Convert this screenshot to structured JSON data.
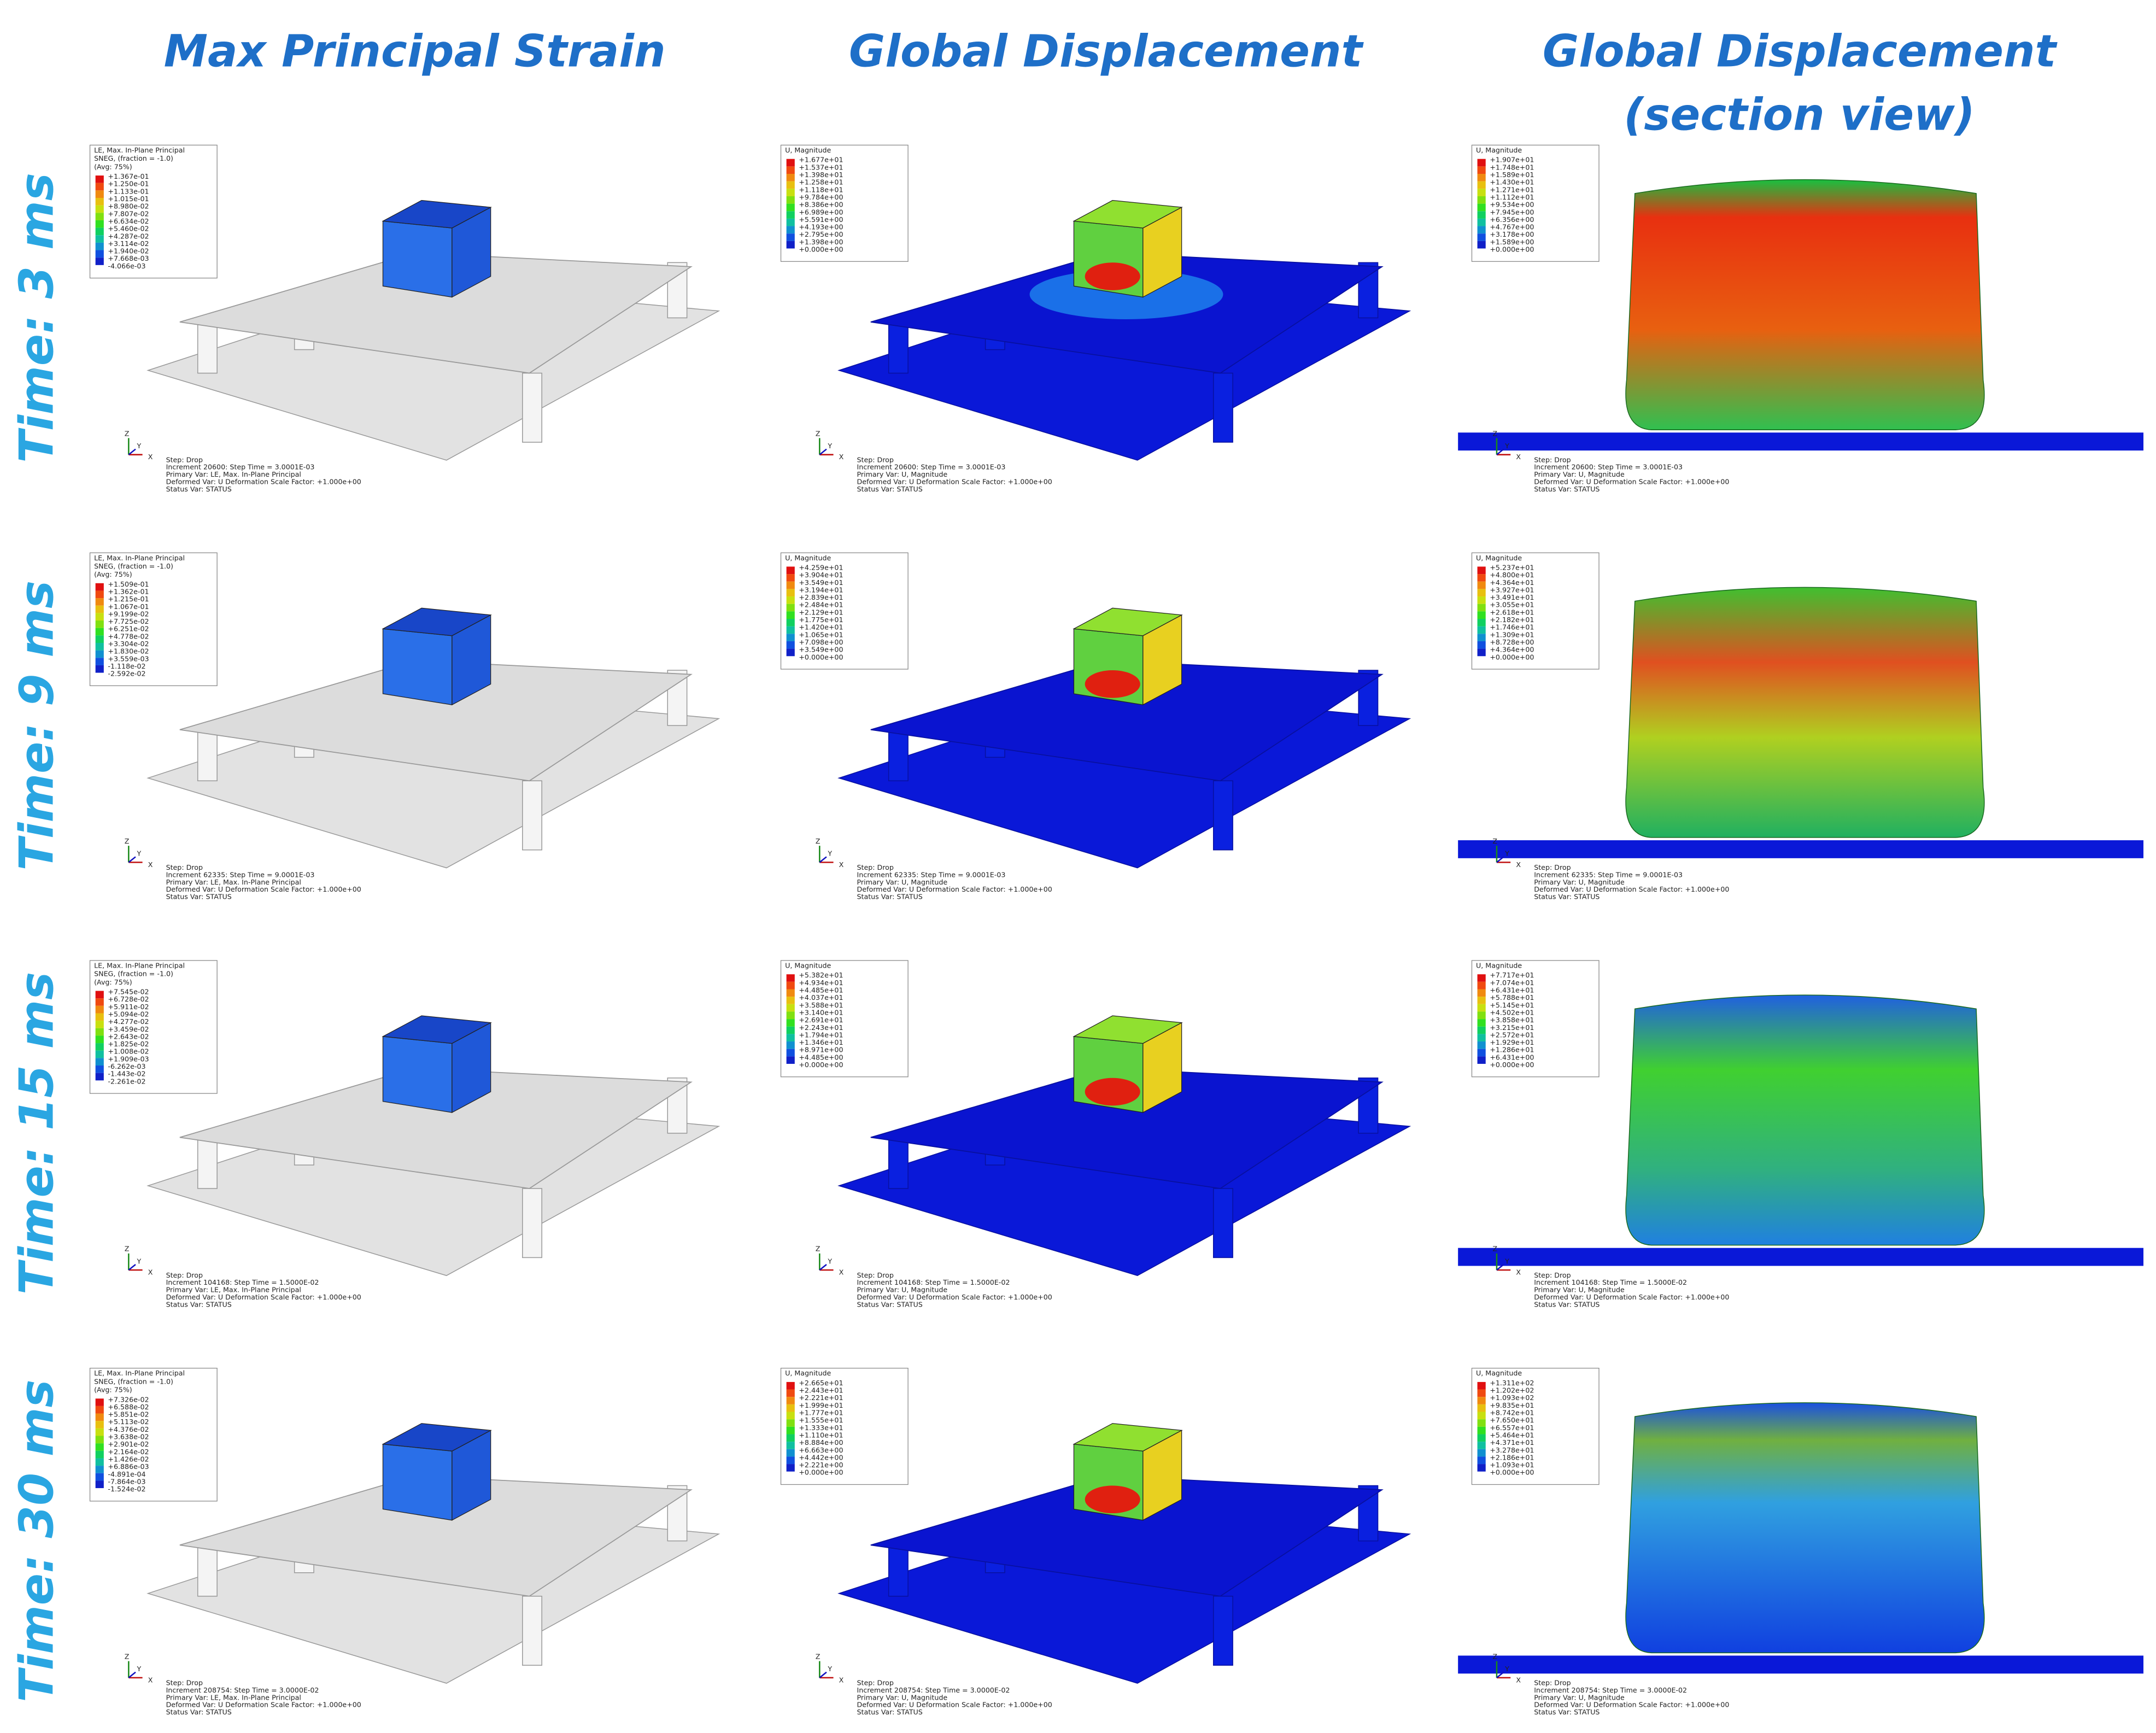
{
  "headers": [
    [
      "Max Principal Strain"
    ],
    [
      "Global Displacement"
    ],
    [
      "Global Displacement",
      "(section view)"
    ]
  ],
  "axis_labels": [
    "Z",
    "Y",
    "X"
  ],
  "rows": [
    {
      "label": "Time: 3 ms",
      "panels": [
        {
          "legend": {
            "title": [
              "LE, Max. In-Plane Principal",
              "SNEG, (fraction = -1.0)",
              "(Avg: 75%)"
            ],
            "values": [
              "+1.367e-01",
              "+1.250e-01",
              "+1.133e-01",
              "+1.015e-01",
              "+8.980e-02",
              "+7.807e-02",
              "+6.634e-02",
              "+5.460e-02",
              "+4.287e-02",
              "+3.114e-02",
              "+1.940e-02",
              "+7.668e-03",
              "-4.066e-03"
            ]
          },
          "footer": [
            "Step: Drop",
            "Increment     20600: Step Time =    3.0001E-03",
            "Primary Var: LE, Max. In-Plane Principal",
            "Deformed Var: U   Deformation Scale Factor: +1.000e+00",
            "Status Var: STATUS"
          ]
        },
        {
          "legend": {
            "title": [
              "U, Magnitude"
            ],
            "values": [
              "+1.677e+01",
              "+1.537e+01",
              "+1.398e+01",
              "+1.258e+01",
              "+1.118e+01",
              "+9.784e+00",
              "+8.386e+00",
              "+6.989e+00",
              "+5.591e+00",
              "+4.193e+00",
              "+2.795e+00",
              "+1.398e+00",
              "+0.000e+00"
            ]
          },
          "footer": [
            "Step: Drop",
            "Increment     20600: Step Time =    3.0001E-03",
            "Primary Var: U, Magnitude",
            "Deformed Var: U   Deformation Scale Factor: +1.000e+00",
            "Status Var: STATUS"
          ]
        },
        {
          "legend": {
            "title": [
              "U, Magnitude"
            ],
            "values": [
              "+1.907e+01",
              "+1.748e+01",
              "+1.589e+01",
              "+1.430e+01",
              "+1.271e+01",
              "+1.112e+01",
              "+9.534e+00",
              "+7.945e+00",
              "+6.356e+00",
              "+4.767e+00",
              "+3.178e+00",
              "+1.589e+00",
              "+0.000e+00"
            ]
          },
          "footer": [
            "Step: Drop",
            "Increment     20600: Step Time =    3.0001E-03",
            "Primary Var: U, Magnitude",
            "Deformed Var: U   Deformation Scale Factor: +1.000e+00",
            "Status Var: STATUS"
          ]
        }
      ]
    },
    {
      "label": "Time: 9 ms",
      "panels": [
        {
          "legend": {
            "title": [
              "LE, Max. In-Plane Principal",
              "SNEG, (fraction = -1.0)",
              "(Avg: 75%)"
            ],
            "values": [
              "+1.509e-01",
              "+1.362e-01",
              "+1.215e-01",
              "+1.067e-01",
              "+9.199e-02",
              "+7.725e-02",
              "+6.251e-02",
              "+4.778e-02",
              "+3.304e-02",
              "+1.830e-02",
              "+3.559e-03",
              "-1.118e-02",
              "-2.592e-02"
            ]
          },
          "footer": [
            "Step: Drop",
            "Increment     62335: Step Time =    9.0001E-03",
            "Primary Var: LE, Max. In-Plane Principal",
            "Deformed Var: U   Deformation Scale Factor: +1.000e+00",
            "Status Var: STATUS"
          ]
        },
        {
          "legend": {
            "title": [
              "U, Magnitude"
            ],
            "values": [
              "+4.259e+01",
              "+3.904e+01",
              "+3.549e+01",
              "+3.194e+01",
              "+2.839e+01",
              "+2.484e+01",
              "+2.129e+01",
              "+1.775e+01",
              "+1.420e+01",
              "+1.065e+01",
              "+7.098e+00",
              "+3.549e+00",
              "+0.000e+00"
            ]
          },
          "footer": [
            "Step: Drop",
            "Increment     62335: Step Time =    9.0001E-03",
            "Primary Var: U, Magnitude",
            "Deformed Var: U   Deformation Scale Factor: +1.000e+00",
            "Status Var: STATUS"
          ]
        },
        {
          "legend": {
            "title": [
              "U, Magnitude"
            ],
            "values": [
              "+5.237e+01",
              "+4.800e+01",
              "+4.364e+01",
              "+3.927e+01",
              "+3.491e+01",
              "+3.055e+01",
              "+2.618e+01",
              "+2.182e+01",
              "+1.746e+01",
              "+1.309e+01",
              "+8.728e+00",
              "+4.364e+00",
              "+0.000e+00"
            ]
          },
          "footer": [
            "Step: Drop",
            "Increment     62335: Step Time =    9.0001E-03",
            "Primary Var: U, Magnitude",
            "Deformed Var: U   Deformation Scale Factor: +1.000e+00",
            "Status Var: STATUS"
          ]
        }
      ]
    },
    {
      "label": "Time: 15 ms",
      "panels": [
        {
          "legend": {
            "title": [
              "LE, Max. In-Plane Principal",
              "SNEG, (fraction = -1.0)",
              "(Avg: 75%)"
            ],
            "values": [
              "+7.545e-02",
              "+6.728e-02",
              "+5.911e-02",
              "+5.094e-02",
              "+4.277e-02",
              "+3.459e-02",
              "+2.643e-02",
              "+1.825e-02",
              "+1.008e-02",
              "+1.909e-03",
              "-6.262e-03",
              "-1.443e-02",
              "-2.261e-02"
            ]
          },
          "footer": [
            "Step: Drop",
            "Increment    104168: Step Time =    1.5000E-02",
            "Primary Var: LE, Max. In-Plane Principal",
            "Deformed Var: U   Deformation Scale Factor: +1.000e+00",
            "Status Var: STATUS"
          ]
        },
        {
          "legend": {
            "title": [
              "U, Magnitude"
            ],
            "values": [
              "+5.382e+01",
              "+4.934e+01",
              "+4.485e+01",
              "+4.037e+01",
              "+3.588e+01",
              "+3.140e+01",
              "+2.691e+01",
              "+2.243e+01",
              "+1.794e+01",
              "+1.346e+01",
              "+8.971e+00",
              "+4.485e+00",
              "+0.000e+00"
            ]
          },
          "footer": [
            "Step: Drop",
            "Increment    104168: Step Time =    1.5000E-02",
            "Primary Var: U, Magnitude",
            "Deformed Var: U   Deformation Scale Factor: +1.000e+00",
            "Status Var: STATUS"
          ]
        },
        {
          "legend": {
            "title": [
              "U, Magnitude"
            ],
            "values": [
              "+7.717e+01",
              "+7.074e+01",
              "+6.431e+01",
              "+5.788e+01",
              "+5.145e+01",
              "+4.502e+01",
              "+3.858e+01",
              "+3.215e+01",
              "+2.572e+01",
              "+1.929e+01",
              "+1.286e+01",
              "+6.431e+00",
              "+0.000e+00"
            ]
          },
          "footer": [
            "Step: Drop",
            "Increment    104168: Step Time =    1.5000E-02",
            "Primary Var: U, Magnitude",
            "Deformed Var: U   Deformation Scale Factor: +1.000e+00",
            "Status Var: STATUS"
          ]
        }
      ]
    },
    {
      "label": "Time: 30 ms",
      "panels": [
        {
          "legend": {
            "title": [
              "LE, Max. In-Plane Principal",
              "SNEG, (fraction = -1.0)",
              "(Avg: 75%)"
            ],
            "values": [
              "+7.326e-02",
              "+6.588e-02",
              "+5.851e-02",
              "+5.113e-02",
              "+4.376e-02",
              "+3.638e-02",
              "+2.901e-02",
              "+2.164e-02",
              "+1.426e-02",
              "+6.886e-03",
              "-4.891e-04",
              "-7.864e-03",
              "-1.524e-02"
            ]
          },
          "footer": [
            "Step: Drop",
            "Increment    208754: Step Time =    3.0000E-02",
            "Primary Var: LE, Max. In-Plane Principal",
            "Deformed Var: U   Deformation Scale Factor: +1.000e+00",
            "Status Var: STATUS"
          ]
        },
        {
          "legend": {
            "title": [
              "U, Magnitude"
            ],
            "values": [
              "+2.665e+01",
              "+2.443e+01",
              "+2.221e+01",
              "+1.999e+01",
              "+1.777e+01",
              "+1.555e+01",
              "+1.333e+01",
              "+1.110e+01",
              "+8.884e+00",
              "+6.663e+00",
              "+4.442e+00",
              "+2.221e+00",
              "+0.000e+00"
            ]
          },
          "footer": [
            "Step: Drop",
            "Increment    208754: Step Time =    3.0000E-02",
            "Primary Var: U, Magnitude",
            "Deformed Var: U   Deformation Scale Factor: +1.000e+00",
            "Status Var: STATUS"
          ]
        },
        {
          "legend": {
            "title": [
              "U, Magnitude"
            ],
            "values": [
              "+1.311e+02",
              "+1.202e+02",
              "+1.093e+02",
              "+9.835e+01",
              "+8.742e+01",
              "+7.650e+01",
              "+6.557e+01",
              "+5.464e+01",
              "+4.371e+01",
              "+3.278e+01",
              "+2.186e+01",
              "+1.093e+01",
              "+0.000e+00"
            ]
          },
          "footer": [
            "Step: Drop",
            "Increment    208754: Step Time =    3.0000E-02",
            "Primary Var: U, Magnitude",
            "Deformed Var: U   Deformation Scale Factor: +1.000e+00",
            "Status Var: STATUS"
          ]
        }
      ]
    }
  ]
}
